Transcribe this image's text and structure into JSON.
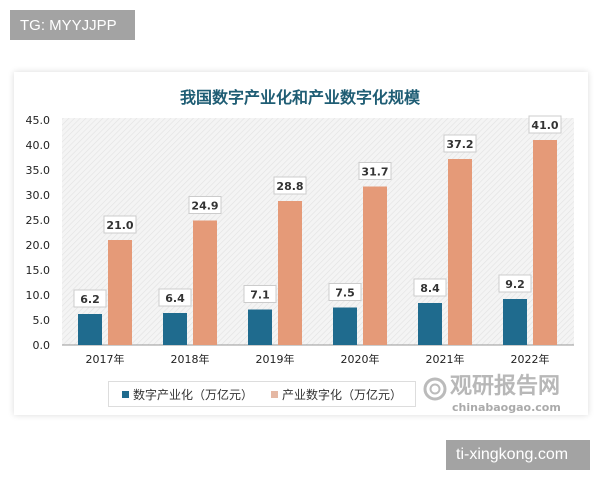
{
  "watermark_tag": "TG: MYYJJPP",
  "site_tag": "ti-xingkong.com",
  "logo": {
    "cn": "观研报告网",
    "en": "chinabaogao.com"
  },
  "chart_data": {
    "type": "bar",
    "title": "我国数字产业化和产业数字化规模",
    "categories": [
      "2017年",
      "2018年",
      "2019年",
      "2020年",
      "2021年",
      "2022年"
    ],
    "series": [
      {
        "name": "数字产业化（万亿元）",
        "values": [
          6.2,
          6.4,
          7.1,
          7.5,
          8.4,
          9.2
        ],
        "color": "#1f6b8e"
      },
      {
        "name": "产业数字化（万亿元）",
        "values": [
          21.0,
          24.9,
          28.8,
          31.7,
          37.2,
          41.0
        ],
        "color": "#e59a78"
      }
    ],
    "ylim": [
      0,
      45
    ],
    "yticks": [
      "0.0",
      "5.0",
      "10.0",
      "15.0",
      "20.0",
      "25.0",
      "30.0",
      "35.0",
      "40.0",
      "45.0"
    ],
    "grid": false,
    "legend": "bottom",
    "data_labels": true
  }
}
